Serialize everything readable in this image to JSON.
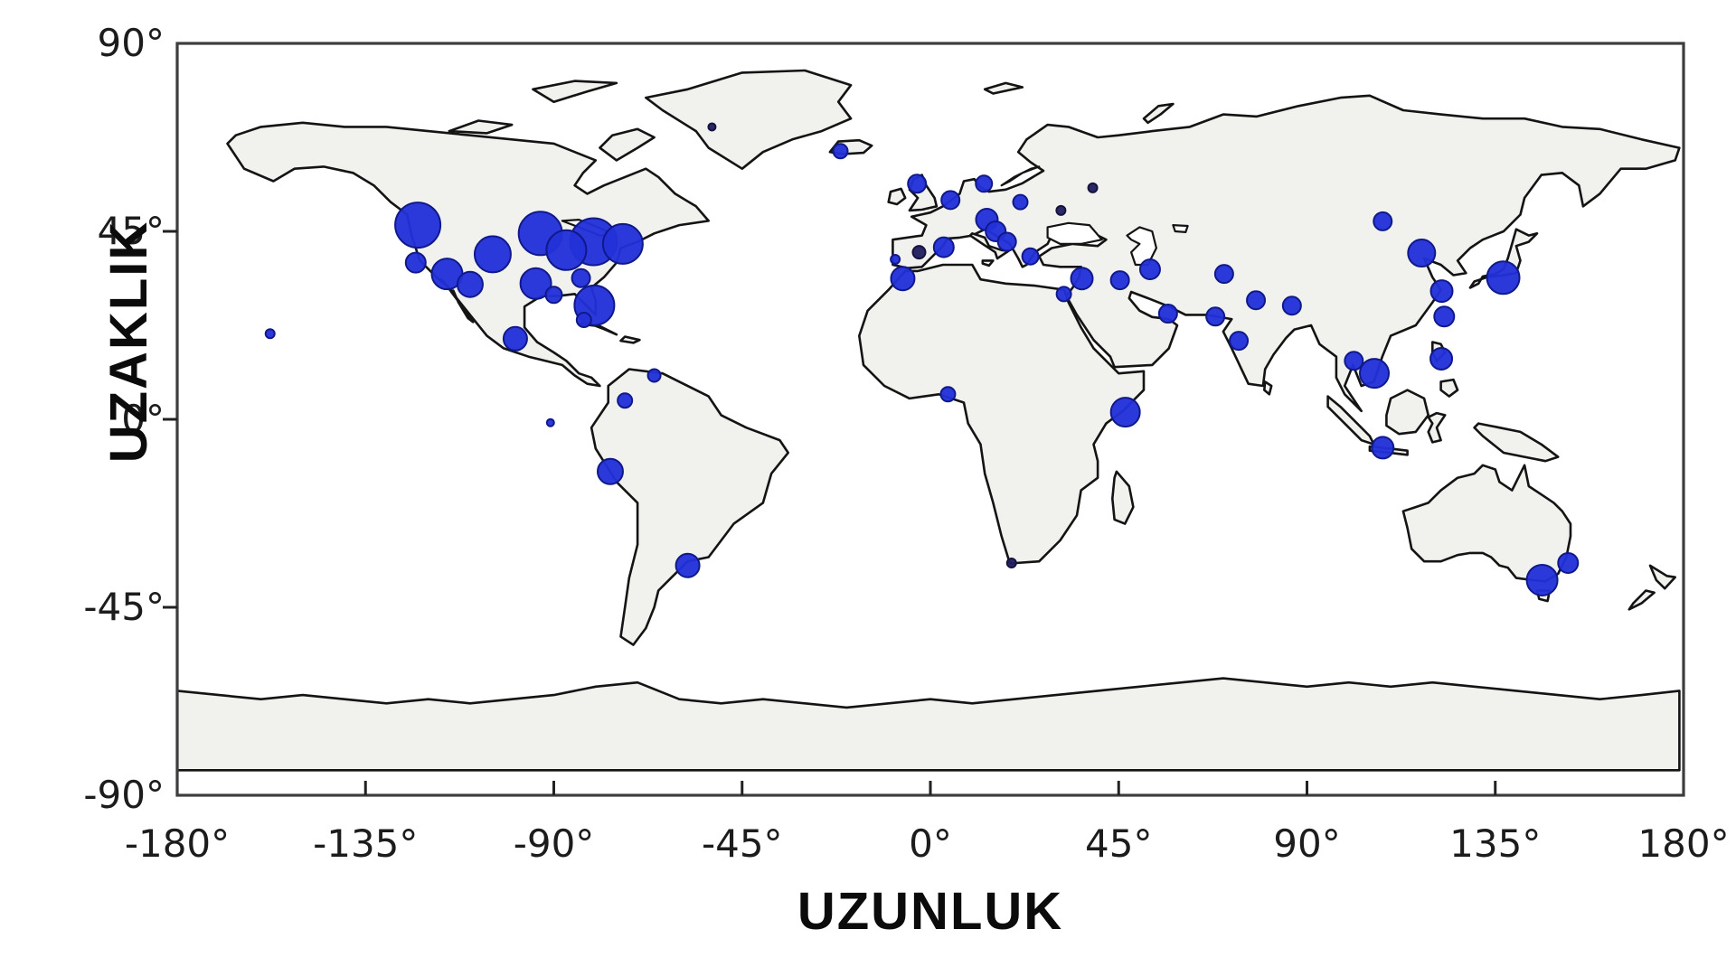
{
  "figure": {
    "background": "#ffffff",
    "frame_color": "#3d3d3d",
    "land_fill": "#f1f1ee",
    "land_stroke": "#141414"
  },
  "chart_data": {
    "type": "scatter",
    "subtype": "bubble-map",
    "title": "",
    "xlabel": "UZUNLUK",
    "ylabel": "UZAKLIK",
    "xlim": [
      -180,
      180
    ],
    "ylim": [
      -90,
      90
    ],
    "grid": false,
    "legend": "none",
    "x_ticks": [
      -180,
      -135,
      -90,
      -45,
      0,
      45,
      90,
      135,
      180
    ],
    "y_ticks": [
      90,
      45,
      0,
      -45,
      -90
    ],
    "x_tick_labels": [
      "-180°",
      "-135°",
      "-90°",
      "-45°",
      "0°",
      "45°",
      "90°",
      "135°",
      "180°"
    ],
    "y_tick_labels": [
      "90°",
      "45°",
      "0°",
      "-45°",
      "-90°"
    ],
    "marker_color": "#2331d8",
    "marker_edge_color": "#10198a",
    "marker_dark_color": "#221f60",
    "points": [
      {
        "lon": -122.5,
        "lat": 46.5,
        "r": 25
      },
      {
        "lon": -123.0,
        "lat": 37.5,
        "r": 11
      },
      {
        "lon": -115.5,
        "lat": 34.8,
        "r": 17
      },
      {
        "lon": -110.0,
        "lat": 32.3,
        "r": 14
      },
      {
        "lon": -104.6,
        "lat": 39.5,
        "r": 20
      },
      {
        "lon": -93.2,
        "lat": 44.5,
        "r": 24
      },
      {
        "lon": -87.0,
        "lat": 40.5,
        "r": 22
      },
      {
        "lon": -80.5,
        "lat": 42.5,
        "r": 26
      },
      {
        "lon": -73.5,
        "lat": 42.0,
        "r": 22
      },
      {
        "lon": -94.3,
        "lat": 32.5,
        "r": 17
      },
      {
        "lon": -90.0,
        "lat": 29.8,
        "r": 9
      },
      {
        "lon": -83.5,
        "lat": 33.8,
        "r": 10
      },
      {
        "lon": -80.3,
        "lat": 27.3,
        "r": 22
      },
      {
        "lon": -82.8,
        "lat": 23.8,
        "r": 8
      },
      {
        "lon": -99.2,
        "lat": 19.3,
        "r": 13
      },
      {
        "lon": -157.8,
        "lat": 20.5,
        "r": 5
      },
      {
        "lon": -52.2,
        "lat": 70.0,
        "r": 4,
        "dark": true
      },
      {
        "lon": -66.0,
        "lat": 10.5,
        "r": 7
      },
      {
        "lon": -73.0,
        "lat": 4.5,
        "r": 8
      },
      {
        "lon": -90.8,
        "lat": -0.8,
        "r": 4
      },
      {
        "lon": -76.5,
        "lat": -12.5,
        "r": 14
      },
      {
        "lon": -58.0,
        "lat": -35.0,
        "r": 13
      },
      {
        "lon": -21.5,
        "lat": 64.2,
        "r": 8
      },
      {
        "lon": -3.2,
        "lat": 56.4,
        "r": 10
      },
      {
        "lon": 4.8,
        "lat": 52.5,
        "r": 10
      },
      {
        "lon": 12.8,
        "lat": 56.4,
        "r": 9
      },
      {
        "lon": 21.5,
        "lat": 52.0,
        "r": 8
      },
      {
        "lon": 13.5,
        "lat": 47.8,
        "r": 12
      },
      {
        "lon": 15.6,
        "lat": 45.0,
        "r": 11
      },
      {
        "lon": 18.3,
        "lat": 42.5,
        "r": 10
      },
      {
        "lon": 23.9,
        "lat": 39.0,
        "r": 9
      },
      {
        "lon": 3.2,
        "lat": 41.2,
        "r": 11
      },
      {
        "lon": -2.7,
        "lat": 40.0,
        "r": 7,
        "dark": true
      },
      {
        "lon": -8.4,
        "lat": 38.3,
        "r": 5
      },
      {
        "lon": 38.8,
        "lat": 55.4,
        "r": 5,
        "dark": true
      },
      {
        "lon": 31.2,
        "lat": 50.0,
        "r": 5,
        "dark": true
      },
      {
        "lon": -6.6,
        "lat": 33.7,
        "r": 13
      },
      {
        "lon": 31.9,
        "lat": 30.0,
        "r": 8
      },
      {
        "lon": 36.2,
        "lat": 33.7,
        "r": 12
      },
      {
        "lon": 45.3,
        "lat": 33.3,
        "r": 10
      },
      {
        "lon": 52.5,
        "lat": 35.9,
        "r": 11
      },
      {
        "lon": 56.8,
        "lat": 25.3,
        "r": 10
      },
      {
        "lon": 4.2,
        "lat": 6.0,
        "r": 8
      },
      {
        "lon": 46.6,
        "lat": 1.7,
        "r": 16
      },
      {
        "lon": 19.4,
        "lat": -34.4,
        "r": 5,
        "dark": true
      },
      {
        "lon": 68.1,
        "lat": 24.6,
        "r": 10
      },
      {
        "lon": 70.2,
        "lat": 34.8,
        "r": 10
      },
      {
        "lon": 77.8,
        "lat": 28.5,
        "r": 10
      },
      {
        "lon": 86.4,
        "lat": 27.2,
        "r": 10
      },
      {
        "lon": 73.7,
        "lat": 18.8,
        "r": 10
      },
      {
        "lon": 108.1,
        "lat": 47.4,
        "r": 10
      },
      {
        "lon": 117.4,
        "lat": 39.8,
        "r": 15
      },
      {
        "lon": 122.2,
        "lat": 30.7,
        "r": 12
      },
      {
        "lon": 122.8,
        "lat": 24.6,
        "r": 11
      },
      {
        "lon": 136.9,
        "lat": 33.9,
        "r": 18
      },
      {
        "lon": 101.2,
        "lat": 14.0,
        "r": 10
      },
      {
        "lon": 106.1,
        "lat": 11.0,
        "r": 16
      },
      {
        "lon": 122.1,
        "lat": 14.5,
        "r": 12
      },
      {
        "lon": 108.1,
        "lat": -6.8,
        "r": 12
      },
      {
        "lon": 146.2,
        "lat": -38.5,
        "r": 17
      },
      {
        "lon": 152.4,
        "lat": -34.4,
        "r": 11
      }
    ]
  }
}
